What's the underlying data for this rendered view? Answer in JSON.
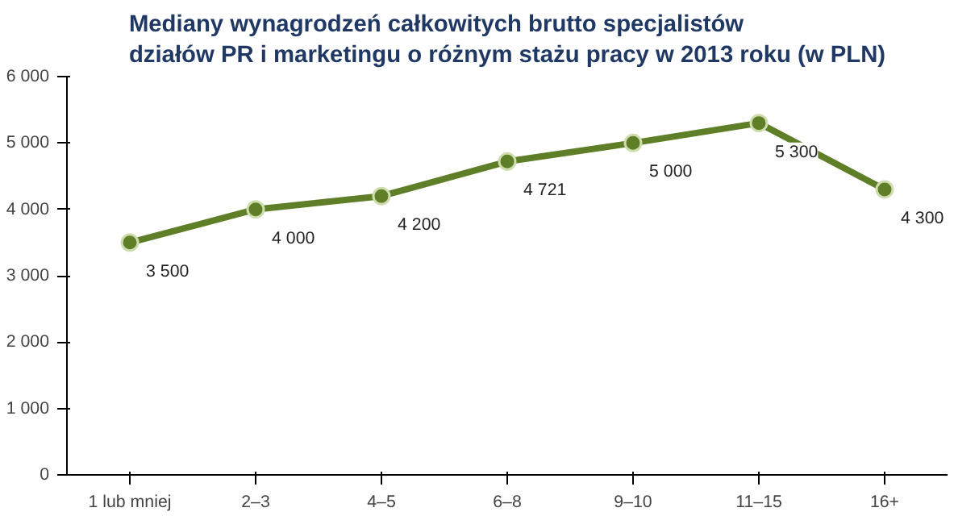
{
  "chart_data": {
    "type": "line",
    "title": "Mediany wynagrodzeń całkowitych brutto specjalistów\ndziałów PR i marketingu o różnym stażu pracy w 2013 roku (w PLN)",
    "categories": [
      "1 lub mniej",
      "2–3",
      "4–5",
      "6–8",
      "9–10",
      "11–15",
      "16+"
    ],
    "series": [
      {
        "color": "#5e7f27",
        "values": [
          3500,
          4000,
          4200,
          4721,
          5000,
          5300,
          4300
        ],
        "value_labels": [
          "3 500",
          "4 000",
          "4 200",
          "4 721",
          "5 000",
          "5 300",
          "4 300"
        ]
      }
    ],
    "ylim": [
      0,
      6000
    ],
    "yticks": [
      {
        "value": 0,
        "label": "0"
      },
      {
        "value": 1000,
        "label": "1 000"
      },
      {
        "value": 2000,
        "label": "2 000"
      },
      {
        "value": 3000,
        "label": "3 000"
      },
      {
        "value": 4000,
        "label": "4 000"
      },
      {
        "value": 5000,
        "label": "5 000"
      },
      {
        "value": 6000,
        "label": "6 000"
      }
    ],
    "grid": false,
    "marker": "circle",
    "line_style": "solid"
  }
}
